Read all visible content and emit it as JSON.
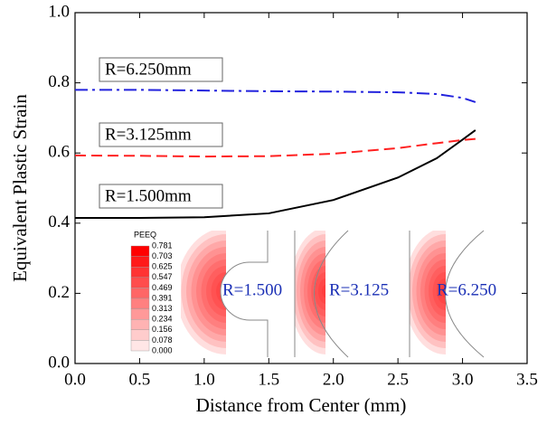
{
  "chart_data": {
    "type": "line",
    "xlabel": "Distance from Center (mm)",
    "ylabel": "Equivalent Plastic Strain",
    "x": [
      0,
      0.5,
      1.0,
      1.5,
      2.0,
      2.5,
      2.8,
      3.0,
      3.1
    ],
    "series": [
      {
        "name": "R=6.250mm",
        "color": "#2222dd",
        "dash": "dashdot",
        "values": [
          0.78,
          0.78,
          0.778,
          0.776,
          0.775,
          0.773,
          0.768,
          0.757,
          0.745
        ]
      },
      {
        "name": "R=3.125mm",
        "color": "#ff2020",
        "dash": "dashed",
        "values": [
          0.593,
          0.592,
          0.59,
          0.591,
          0.598,
          0.614,
          0.628,
          0.637,
          0.64
        ]
      },
      {
        "name": "R=1.500mm",
        "color": "#000000",
        "dash": "solid",
        "values": [
          0.415,
          0.415,
          0.417,
          0.428,
          0.466,
          0.53,
          0.585,
          0.638,
          0.665
        ]
      }
    ],
    "xlim": [
      0,
      3.5
    ],
    "ylim": [
      0,
      1
    ],
    "xticks": [
      {
        "value": 0,
        "label": "0.0"
      },
      0.5,
      {
        "value": 1,
        "label": "1.0"
      },
      1.5,
      {
        "value": 2,
        "label": "2.0"
      },
      2.5,
      {
        "value": 3,
        "label": "3.0"
      },
      3.5
    ],
    "yticks": [
      {
        "value": 0,
        "label": "0.0"
      },
      0.2,
      0.4,
      0.6,
      0.8,
      {
        "value": 1,
        "label": "1.0"
      }
    ],
    "inset": {
      "colorbar_title": "PEEQ",
      "colorbar_labels": [
        "0.781",
        "0.703",
        "0.625",
        "0.547",
        "0.469",
        "0.391",
        "0.313",
        "0.234",
        "0.156",
        "0.078",
        "0.000"
      ],
      "specimens": [
        "R=1.500",
        "R=3.125",
        "R=6.250"
      ]
    }
  }
}
